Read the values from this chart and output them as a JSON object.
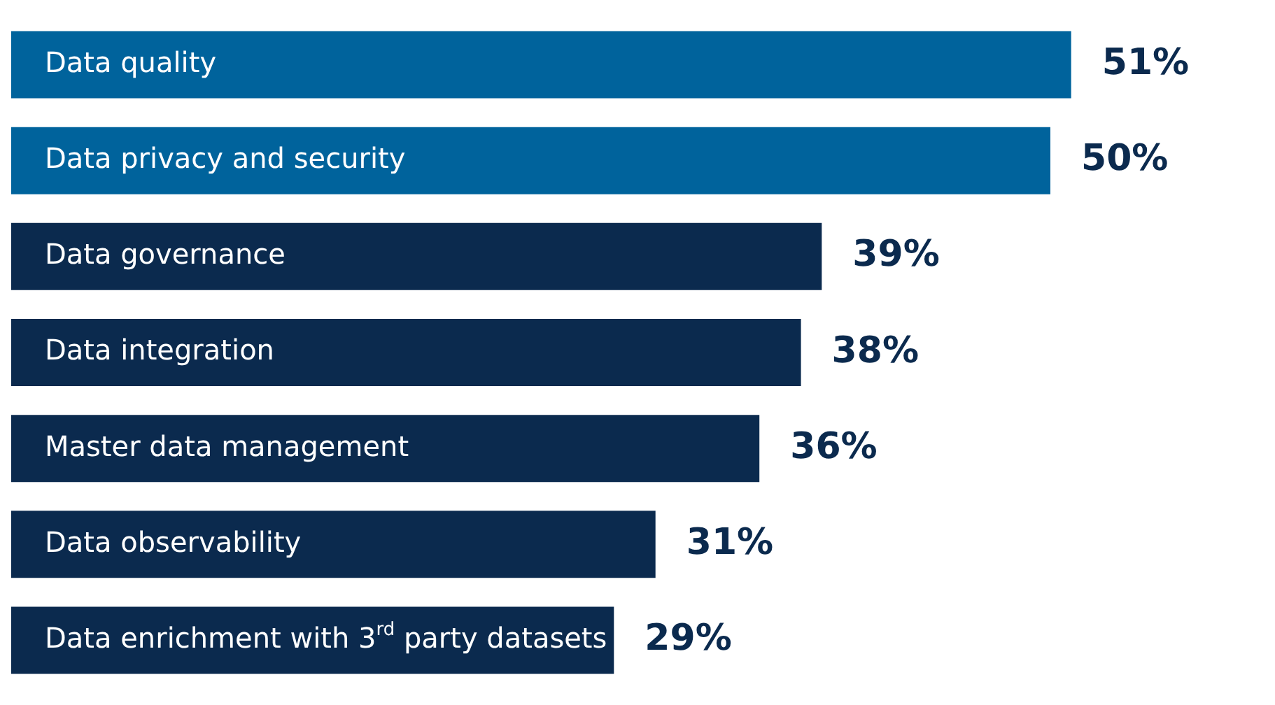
{
  "chart_data": {
    "type": "bar",
    "orientation": "horizontal",
    "categories": [
      "Data quality",
      "Data privacy and security",
      "Data governance",
      "Data integration",
      "Master data management",
      "Data observability",
      "Data enrichment with 3$^{rd}$ party datasets"
    ],
    "values": [
      51,
      50,
      39,
      38,
      36,
      31,
      29
    ],
    "colors": [
      "#00639c",
      "#00639c",
      "#0b2a4e",
      "#0b2a4e",
      "#0b2a4e",
      "#0b2a4e",
      "#0b2a4e"
    ],
    "value_labels": [
      "51%",
      "50%",
      "39%",
      "38%",
      "36%",
      "31%",
      "29%"
    ],
    "legend": false
  }
}
